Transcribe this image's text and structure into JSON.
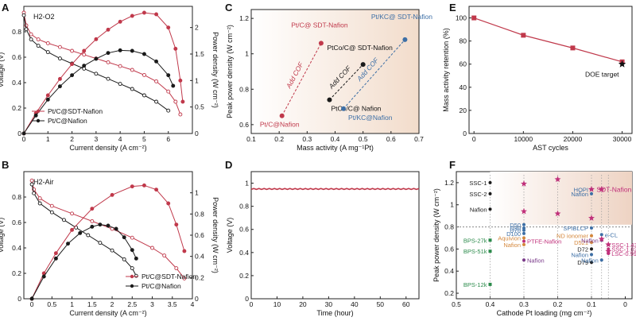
{
  "figure": {
    "colors": {
      "red": "#c0394b",
      "black": "#1a1a1a",
      "blue": "#3d6fa6",
      "orange": "#d4873b",
      "green": "#2a8a4a",
      "purple": "#7a3a8a",
      "magenta": "#c0307a",
      "grid": "#888888"
    }
  },
  "chart_data": [
    {
      "panel": "A",
      "type": "line",
      "annotation": "H2-O2",
      "xlabel": "Current density (A cm⁻²)",
      "ylabel": "Voltage (V)",
      "y2label": "Power density (W cm⁻²)",
      "xlim": [
        0,
        7
      ],
      "xticks": [
        0,
        1,
        2,
        3,
        4,
        5,
        6
      ],
      "ylim": [
        0,
        1.0
      ],
      "yticks": [
        0,
        0.2,
        0.4,
        0.6,
        0.8
      ],
      "y2lim": [
        0,
        2.4
      ],
      "y2ticks": [
        0,
        0.5,
        1.0,
        1.5,
        2.0
      ],
      "legend": [
        "Pt/C@SDT-Nafion",
        "Pt/C@Nafion"
      ],
      "legend_position": "bottom-left",
      "series": [
        {
          "name": "Pt/C@SDT-Nafion",
          "color": "red",
          "axis": "voltage",
          "marker": "open",
          "points": [
            [
              0,
              0.95
            ],
            [
              0.1,
              0.85
            ],
            [
              0.3,
              0.78
            ],
            [
              0.6,
              0.74
            ],
            [
              1,
              0.71
            ],
            [
              1.5,
              0.68
            ],
            [
              2,
              0.65
            ],
            [
              2.5,
              0.62
            ],
            [
              3,
              0.59
            ],
            [
              3.5,
              0.56
            ],
            [
              4,
              0.53
            ],
            [
              4.5,
              0.5
            ],
            [
              5,
              0.46
            ],
            [
              5.5,
              0.41
            ],
            [
              6,
              0.33
            ],
            [
              6.3,
              0.25
            ],
            [
              6.5,
              0.15
            ]
          ]
        },
        {
          "name": "Pt/C@Nafion",
          "color": "black",
          "axis": "voltage",
          "marker": "open",
          "points": [
            [
              0,
              0.93
            ],
            [
              0.1,
              0.82
            ],
            [
              0.3,
              0.74
            ],
            [
              0.6,
              0.69
            ],
            [
              1,
              0.64
            ],
            [
              1.5,
              0.59
            ],
            [
              2,
              0.55
            ],
            [
              2.5,
              0.51
            ],
            [
              3,
              0.47
            ],
            [
              3.5,
              0.43
            ],
            [
              4,
              0.39
            ],
            [
              4.5,
              0.35
            ],
            [
              5,
              0.3
            ],
            [
              5.5,
              0.25
            ],
            [
              6,
              0.18
            ]
          ]
        },
        {
          "name": "Pt/C@SDT-Nafion",
          "color": "red",
          "axis": "power",
          "marker": "filled",
          "points": [
            [
              0,
              0
            ],
            [
              0.5,
              0.38
            ],
            [
              1,
              0.72
            ],
            [
              1.5,
              1.03
            ],
            [
              2,
              1.31
            ],
            [
              2.5,
              1.56
            ],
            [
              3,
              1.78
            ],
            [
              3.5,
              1.96
            ],
            [
              4,
              2.11
            ],
            [
              4.5,
              2.22
            ],
            [
              5,
              2.28
            ],
            [
              5.5,
              2.25
            ],
            [
              6,
              2.0
            ],
            [
              6.3,
              1.6
            ],
            [
              6.5,
              1.0
            ],
            [
              6.6,
              0.6
            ]
          ]
        },
        {
          "name": "Pt/C@Nafion",
          "color": "black",
          "axis": "power",
          "marker": "filled",
          "points": [
            [
              0,
              0
            ],
            [
              0.5,
              0.34
            ],
            [
              1,
              0.64
            ],
            [
              1.5,
              0.89
            ],
            [
              2,
              1.1
            ],
            [
              2.5,
              1.28
            ],
            [
              3,
              1.41
            ],
            [
              3.5,
              1.52
            ],
            [
              4,
              1.57
            ],
            [
              4.5,
              1.56
            ],
            [
              5,
              1.5
            ],
            [
              5.5,
              1.36
            ],
            [
              6,
              1.1
            ],
            [
              6.2,
              0.9
            ]
          ]
        }
      ]
    },
    {
      "panel": "B",
      "type": "line",
      "annotation": "H2-Air",
      "xlabel": "Current density (A cm⁻²)",
      "ylabel": "Voltage (V)",
      "y2label": "Power density (W cm⁻²)",
      "xlim": [
        -0.2,
        4
      ],
      "xticks": [
        0.0,
        0.5,
        1.0,
        1.5,
        2.0,
        2.5,
        3.0,
        3.5,
        4.0
      ],
      "ylim": [
        0,
        1.0
      ],
      "yticks": [
        0.0,
        0.2,
        0.4,
        0.6,
        0.8
      ],
      "y2lim": [
        0,
        1.2
      ],
      "y2ticks": [
        0.0,
        0.2,
        0.4,
        0.6,
        0.8,
        1.0
      ],
      "legend": [
        "Pt/C@SDT-Nafion",
        "Pt/C@Nafion"
      ],
      "legend_position": "bottom-right",
      "series": [
        {
          "name": "Pt/C@SDT-Nafion",
          "color": "red",
          "axis": "voltage",
          "marker": "open",
          "points": [
            [
              0,
              0.93
            ],
            [
              0.05,
              0.86
            ],
            [
              0.2,
              0.79
            ],
            [
              0.5,
              0.73
            ],
            [
              1,
              0.67
            ],
            [
              1.5,
              0.61
            ],
            [
              2,
              0.55
            ],
            [
              2.5,
              0.48
            ],
            [
              3,
              0.4
            ],
            [
              3.3,
              0.34
            ],
            [
              3.6,
              0.24
            ],
            [
              3.8,
              0.16
            ]
          ]
        },
        {
          "name": "Pt/C@Nafion",
          "color": "black",
          "axis": "voltage",
          "marker": "open",
          "points": [
            [
              0,
              0.9
            ],
            [
              0.05,
              0.83
            ],
            [
              0.2,
              0.75
            ],
            [
              0.5,
              0.68
            ],
            [
              0.8,
              0.62
            ],
            [
              1.1,
              0.56
            ],
            [
              1.4,
              0.5
            ],
            [
              1.7,
              0.44
            ],
            [
              2.0,
              0.38
            ],
            [
              2.3,
              0.31
            ],
            [
              2.5,
              0.24
            ],
            [
              2.6,
              0.18
            ]
          ]
        },
        {
          "name": "Pt/C@SDT-Nafion",
          "color": "red",
          "axis": "power",
          "marker": "filled",
          "points": [
            [
              0,
              0
            ],
            [
              0.3,
              0.24
            ],
            [
              0.6,
              0.43
            ],
            [
              1,
              0.65
            ],
            [
              1.5,
              0.85
            ],
            [
              2,
              0.98
            ],
            [
              2.5,
              1.06
            ],
            [
              2.8,
              1.07
            ],
            [
              3.1,
              1.03
            ],
            [
              3.4,
              0.9
            ],
            [
              3.6,
              0.7
            ],
            [
              3.8,
              0.45
            ]
          ]
        },
        {
          "name": "Pt/C@Nafion",
          "color": "black",
          "axis": "power",
          "marker": "filled",
          "points": [
            [
              0,
              0
            ],
            [
              0.3,
              0.21
            ],
            [
              0.6,
              0.38
            ],
            [
              0.9,
              0.52
            ],
            [
              1.2,
              0.62
            ],
            [
              1.5,
              0.68
            ],
            [
              1.7,
              0.7
            ],
            [
              1.9,
              0.69
            ],
            [
              2.1,
              0.66
            ],
            [
              2.3,
              0.58
            ],
            [
              2.5,
              0.46
            ],
            [
              2.6,
              0.38
            ]
          ]
        }
      ]
    },
    {
      "panel": "C",
      "type": "scatter",
      "xlabel": "Mass activity (A mg⁻¹Pt)",
      "ylabel": "Peak power density (W cm⁻²)",
      "xlim": [
        0.1,
        0.7
      ],
      "xticks": [
        0.1,
        0.2,
        0.3,
        0.4,
        0.5,
        0.6,
        0.7
      ],
      "ylim": [
        0.55,
        1.25
      ],
      "yticks": [
        0.6,
        0.8,
        1.0,
        1.2
      ],
      "points": [
        {
          "label": "Pt/C@Nafion",
          "x": 0.21,
          "y": 0.65,
          "color": "red"
        },
        {
          "label": "Pt/C@ SDT-Nafion",
          "x": 0.35,
          "y": 1.06,
          "color": "red"
        },
        {
          "label": "PtCo/C@ Nafion",
          "x": 0.38,
          "y": 0.74,
          "color": "black"
        },
        {
          "label": "PtCo/C@ SDT-Nafion",
          "x": 0.5,
          "y": 0.94,
          "color": "black"
        },
        {
          "label": "Pt/KC@Nafion",
          "x": 0.43,
          "y": 0.69,
          "color": "blue"
        },
        {
          "label": "Pt/KC@ SDT-Nafion",
          "x": 0.65,
          "y": 1.08,
          "color": "blue"
        }
      ],
      "arrows": [
        {
          "label": "Add COF",
          "color": "red"
        },
        {
          "label": "Add COF",
          "color": "black"
        },
        {
          "label": "Add COF",
          "color": "blue"
        }
      ]
    },
    {
      "panel": "D",
      "type": "line",
      "xlabel": "Time (hour)",
      "ylabel": "Voltage (V)",
      "xlim": [
        0,
        65
      ],
      "xticks": [
        0,
        10,
        20,
        30,
        40,
        50,
        60
      ],
      "ylim": [
        0,
        1.1
      ],
      "yticks": [
        0.0,
        0.2,
        0.4,
        0.6,
        0.8,
        1.0
      ],
      "series": [
        {
          "color": "red",
          "value": 0.95
        }
      ]
    },
    {
      "panel": "E",
      "type": "line",
      "xlabel": "AST cycles",
      "ylabel": "Mass activity retention (%)",
      "xlim": [
        -1000,
        32000
      ],
      "xticks": [
        0,
        10000,
        20000,
        30000
      ],
      "ylim": [
        0,
        110
      ],
      "yticks": [
        0,
        20,
        40,
        60,
        80,
        100
      ],
      "series": [
        {
          "color": "red",
          "x": [
            0,
            10000,
            20000,
            30000
          ],
          "y": [
            100,
            85,
            74,
            62
          ]
        }
      ],
      "target": {
        "label": "DOE target",
        "x": 30000,
        "y": 60
      }
    },
    {
      "panel": "F",
      "type": "scatter",
      "xlabel": "Cathode Pt loading (mg cm⁻²)",
      "ylabel": "Peak power density (W cm⁻²)",
      "xlim": [
        0.5,
        -0.02
      ],
      "xticks": [
        0.5,
        0.4,
        0.3,
        0.2,
        0.1,
        0.0
      ],
      "ylim": [
        0.15,
        1.3
      ],
      "yticks": [
        0.2,
        0.4,
        0.6,
        0.8,
        1.0,
        1.2
      ],
      "points": [
        {
          "label": "SSC-1",
          "x": 0.4,
          "y": 1.2,
          "color": "black"
        },
        {
          "label": "SSC-2",
          "x": 0.4,
          "y": 1.1,
          "color": "black"
        },
        {
          "label": "Nafion",
          "x": 0.4,
          "y": 0.96,
          "color": "black"
        },
        {
          "label": "BPS-27k",
          "x": 0.4,
          "y": 0.68,
          "color": "green"
        },
        {
          "label": "BPS-51k",
          "x": 0.4,
          "y": 0.58,
          "color": "green"
        },
        {
          "label": "BPS-12k",
          "x": 0.4,
          "y": 0.28,
          "color": "green"
        },
        {
          "label": "D50",
          "x": 0.3,
          "y": 0.82,
          "color": "blue"
        },
        {
          "label": "D30",
          "x": 0.3,
          "y": 0.79,
          "color": "blue"
        },
        {
          "label": "D70",
          "x": 0.3,
          "y": 0.77,
          "color": "blue"
        },
        {
          "label": "D100",
          "x": 0.3,
          "y": 0.74,
          "color": "blue"
        },
        {
          "label": "Aquivion",
          "x": 0.3,
          "y": 0.7,
          "color": "orange"
        },
        {
          "label": "PTFE-Nafion",
          "x": 0.3,
          "y": 0.67,
          "color": "magenta"
        },
        {
          "label": "Nafion",
          "x": 0.3,
          "y": 0.64,
          "color": "orange"
        },
        {
          "label": "Nafion",
          "x": 0.3,
          "y": 0.5,
          "color": "purple"
        },
        {
          "label": "HOPI",
          "x": 0.1,
          "y": 1.14,
          "color": "blue"
        },
        {
          "label": "Nafion",
          "x": 0.1,
          "y": 1.1,
          "color": "blue"
        },
        {
          "label": "SPIBLCP",
          "x": 0.1,
          "y": 0.79,
          "color": "blue"
        },
        {
          "label": "ND ionomer",
          "x": 0.1,
          "y": 0.72,
          "color": "orange"
        },
        {
          "label": "D521",
          "x": 0.1,
          "y": 0.66,
          "color": "orange"
        },
        {
          "label": "D72",
          "x": 0.1,
          "y": 0.6,
          "color": "black"
        },
        {
          "label": "Nafion",
          "x": 0.1,
          "y": 0.55,
          "color": "blue"
        },
        {
          "label": "D79",
          "x": 0.1,
          "y": 0.48,
          "color": "black"
        },
        {
          "label": "e-CL",
          "x": 0.07,
          "y": 0.73,
          "color": "blue"
        },
        {
          "label": "Nafion",
          "x": 0.07,
          "y": 0.68,
          "color": "purple"
        },
        {
          "label": "SSC-1.43",
          "x": 0.05,
          "y": 0.64,
          "color": "magenta"
        },
        {
          "label": "SSC-1.02",
          "x": 0.05,
          "y": 0.6,
          "color": "magenta"
        },
        {
          "label": "LSC-0.99",
          "x": 0.05,
          "y": 0.56,
          "color": "magenta"
        },
        {
          "label": "Nafion",
          "x": 0.07,
          "y": 0.5,
          "color": "blue"
        }
      ],
      "stars": [
        {
          "x": 0.3,
          "y": 1.19
        },
        {
          "x": 0.3,
          "y": 0.94
        },
        {
          "x": 0.2,
          "y": 1.23
        },
        {
          "x": 0.2,
          "y": 0.92
        },
        {
          "x": 0.1,
          "y": 1.14
        },
        {
          "x": 0.1,
          "y": 0.88
        },
        {
          "x": 0.07,
          "y": 1.14
        },
        {
          "x": 0.07,
          "y": 0.69
        },
        {
          "x": 0.05,
          "y": 0.64
        },
        {
          "x": 0.05,
          "y": 0.58
        }
      ],
      "legend_entry": "SDT-Nafion"
    }
  ]
}
